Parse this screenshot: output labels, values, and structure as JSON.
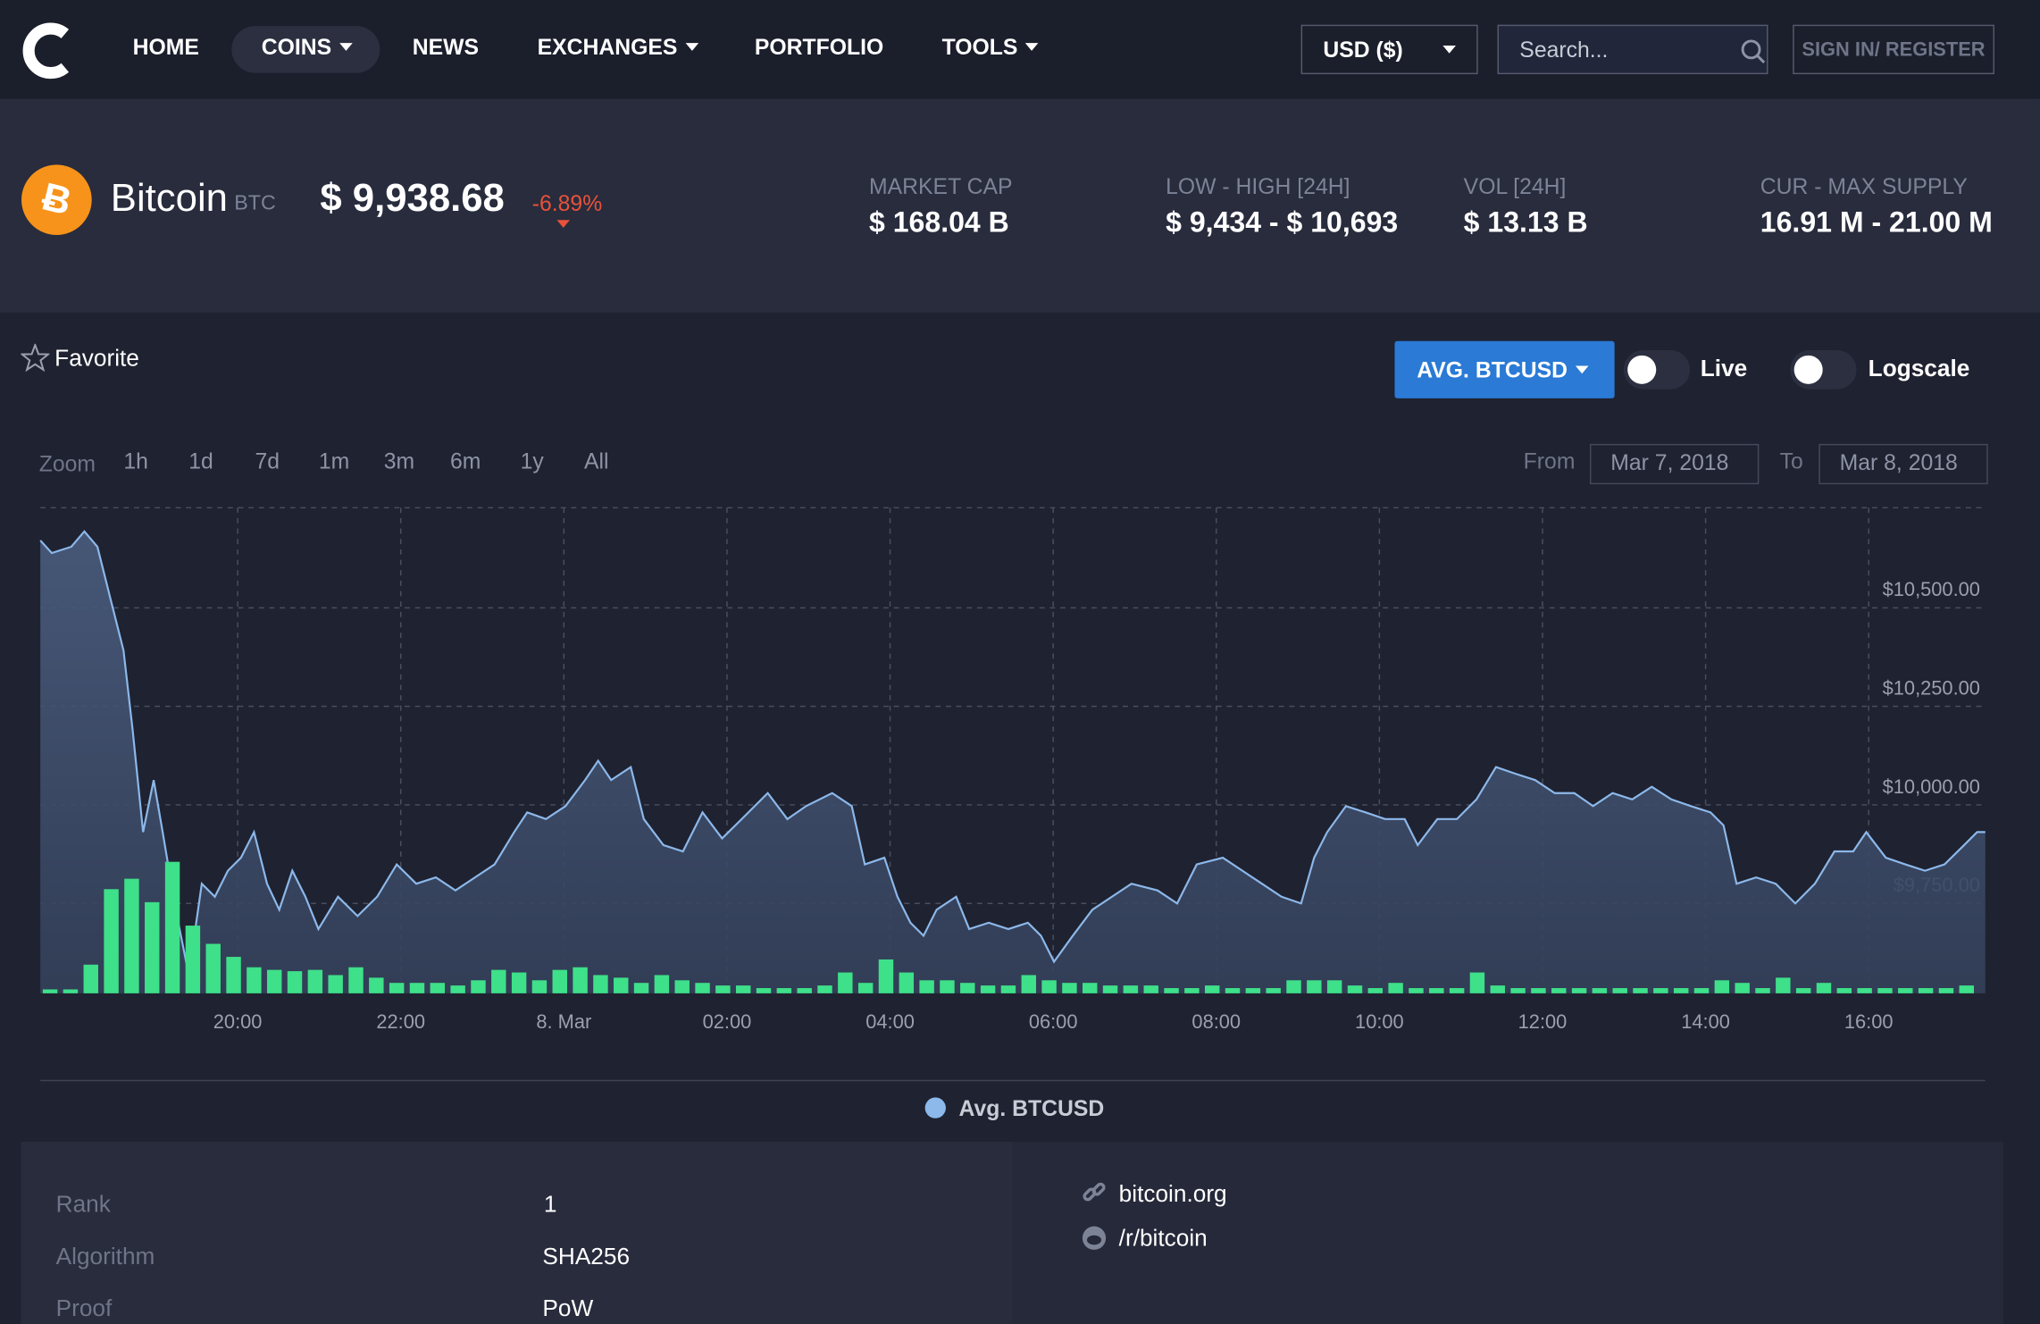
{
  "nav": {
    "items": [
      "HOME",
      "COINS",
      "NEWS",
      "EXCHANGES",
      "PORTFOLIO",
      "TOOLS"
    ],
    "currency": "USD ($)",
    "search_placeholder": "Search...",
    "sign_in": "SIGN IN/ REGISTER"
  },
  "coin": {
    "name": "Bitcoin",
    "symbol": "BTC",
    "price": "$ 9,938.68",
    "change": "-6.89%"
  },
  "stats": [
    {
      "label": "MARKET CAP",
      "value": "$ 168.04 B"
    },
    {
      "label": "LOW - HIGH [24H]",
      "value": "$ 9,434 - $ 10,693"
    },
    {
      "label": "VOL [24H]",
      "value": "$ 13.13 B"
    },
    {
      "label": "CUR - MAX SUPPLY",
      "value": "16.91 M - 21.00 M"
    }
  ],
  "controls": {
    "favorite": "Favorite",
    "pair": "AVG. BTCUSD",
    "live": "Live",
    "logscale": "Logscale"
  },
  "chart_controls": {
    "zoom": "Zoom",
    "ranges": [
      "1h",
      "1d",
      "7d",
      "1m",
      "3m",
      "6m",
      "1y",
      "All"
    ],
    "from": "From",
    "from_date": "Mar 7, 2018",
    "to": "To",
    "to_date": "Mar 8, 2018"
  },
  "chart_data": {
    "type": "area",
    "grid": true,
    "xlim": [
      17.58,
      41.43
    ],
    "xticks": [
      {
        "value": 20,
        "label": "20:00"
      },
      {
        "value": 22,
        "label": "22:00"
      },
      {
        "value": 24,
        "label": "8. Mar"
      },
      {
        "value": 26,
        "label": "02:00"
      },
      {
        "value": 28,
        "label": "04:00"
      },
      {
        "value": 30,
        "label": "06:00"
      },
      {
        "value": 32,
        "label": "08:00"
      },
      {
        "value": 34,
        "label": "10:00"
      },
      {
        "value": 36,
        "label": "12:00"
      },
      {
        "value": 38,
        "label": "14:00"
      },
      {
        "value": 40,
        "label": "16:00"
      }
    ],
    "ylim": [
      9522,
      10754
    ],
    "yticks": [
      {
        "value": 9750,
        "label": "$9,750.00"
      },
      {
        "value": 10000,
        "label": "$10,000.00"
      },
      {
        "value": 10250,
        "label": "$10,250.00"
      },
      {
        "value": 10500,
        "label": "$10,500.00"
      }
    ],
    "y2lim": [
      0,
      373
    ],
    "series": [
      {
        "name": "Avg. BTCUSD",
        "color": "#8cb8ea",
        "x": [
          17.58,
          17.72,
          17.96,
          18.12,
          18.28,
          18.44,
          18.6,
          18.71,
          18.84,
          18.97,
          19.08,
          19.24,
          19.4,
          19.56,
          19.72,
          19.88,
          20.04,
          20.2,
          20.36,
          20.51,
          20.67,
          20.83,
          20.99,
          21.23,
          21.47,
          21.71,
          21.95,
          22.19,
          22.43,
          22.67,
          22.91,
          23.15,
          23.39,
          23.55,
          23.78,
          24.02,
          24.26,
          24.42,
          24.58,
          24.82,
          24.98,
          25.22,
          25.46,
          25.7,
          25.94,
          26.18,
          26.5,
          26.74,
          26.97,
          27.29,
          27.53,
          27.69,
          27.93,
          28.09,
          28.25,
          28.41,
          28.57,
          28.81,
          28.97,
          29.21,
          29.45,
          29.69,
          29.85,
          30.01,
          30.24,
          30.48,
          30.72,
          30.96,
          31.28,
          31.52,
          31.76,
          32.08,
          32.32,
          32.56,
          32.8,
          33.04,
          33.2,
          33.36,
          33.59,
          33.83,
          34.07,
          34.31,
          34.47,
          34.71,
          34.95,
          35.19,
          35.43,
          35.67,
          35.91,
          36.15,
          36.39,
          36.62,
          36.86,
          37.1,
          37.34,
          37.58,
          37.82,
          38.06,
          38.22,
          38.38,
          38.62,
          38.86,
          39.1,
          39.34,
          39.58,
          39.81,
          39.97,
          40.21,
          40.45,
          40.69,
          40.93,
          41.17,
          41.33,
          41.43
        ],
        "values": [
          10671,
          10639,
          10655,
          10694,
          10655,
          10523,
          10392,
          10194,
          9931,
          10063,
          9931,
          9734,
          9569,
          9800,
          9767,
          9833,
          9866,
          9931,
          9800,
          9734,
          9833,
          9767,
          9685,
          9767,
          9718,
          9767,
          9849,
          9800,
          9816,
          9783,
          9816,
          9849,
          9931,
          9981,
          9964,
          9997,
          10063,
          10112,
          10063,
          10096,
          9964,
          9898,
          9882,
          9981,
          9915,
          9964,
          10030,
          9964,
          9997,
          10030,
          9997,
          9849,
          9866,
          9767,
          9701,
          9668,
          9734,
          9767,
          9685,
          9701,
          9685,
          9701,
          9668,
          9602,
          9668,
          9734,
          9767,
          9800,
          9783,
          9750,
          9849,
          9866,
          9833,
          9800,
          9767,
          9750,
          9866,
          9931,
          9997,
          9981,
          9964,
          9964,
          9898,
          9964,
          9964,
          10014,
          10096,
          10079,
          10063,
          10030,
          10030,
          9997,
          10030,
          10014,
          10046,
          10014,
          9997,
          9981,
          9948,
          9800,
          9816,
          9800,
          9750,
          9800,
          9882,
          9882,
          9931,
          9866,
          9849,
          9833,
          9849,
          9898,
          9931,
          9931
        ]
      },
      {
        "type": "bar",
        "axis": "y2",
        "color": "#3ee089",
        "x": [
          17.7,
          17.95,
          18.2,
          18.45,
          18.7,
          18.95,
          19.2,
          19.45,
          19.7,
          19.95,
          20.2,
          20.45,
          20.7,
          20.95,
          21.2,
          21.45,
          21.7,
          21.95,
          22.2,
          22.45,
          22.7,
          22.95,
          23.2,
          23.45,
          23.7,
          23.95,
          24.2,
          24.45,
          24.7,
          24.95,
          25.2,
          25.45,
          25.7,
          25.95,
          26.2,
          26.45,
          26.7,
          26.95,
          27.2,
          27.45,
          27.7,
          27.95,
          28.2,
          28.45,
          28.7,
          28.95,
          29.2,
          29.45,
          29.7,
          29.95,
          30.2,
          30.45,
          30.7,
          30.95,
          31.2,
          31.45,
          31.7,
          31.95,
          32.2,
          32.45,
          32.7,
          32.95,
          33.2,
          33.45,
          33.7,
          33.95,
          34.2,
          34.45,
          34.7,
          34.95,
          35.2,
          35.45,
          35.7,
          35.95,
          36.2,
          36.45,
          36.7,
          36.95,
          37.2,
          37.45,
          37.7,
          37.95,
          38.2,
          38.45,
          38.7,
          38.95,
          39.2,
          39.45,
          39.7,
          39.95,
          40.2,
          40.45,
          40.7,
          40.95,
          41.2
        ],
        "values": [
          3,
          3,
          22,
          80,
          88,
          70,
          101,
          52,
          38,
          28,
          20,
          18,
          17,
          18,
          14,
          20,
          12,
          8,
          8,
          8,
          6,
          10,
          18,
          16,
          10,
          18,
          20,
          14,
          12,
          8,
          14,
          10,
          8,
          6,
          6,
          4,
          4,
          4,
          6,
          16,
          8,
          26,
          16,
          10,
          10,
          8,
          6,
          6,
          14,
          10,
          8,
          8,
          6,
          6,
          6,
          4,
          4,
          6,
          4,
          4,
          4,
          10,
          10,
          10,
          6,
          4,
          8,
          4,
          4,
          4,
          16,
          6,
          4,
          4,
          4,
          4,
          4,
          4,
          4,
          4,
          4,
          4,
          10,
          8,
          4,
          12,
          4,
          8,
          4,
          4,
          4,
          4,
          4,
          4,
          6
        ]
      }
    ]
  },
  "details": {
    "rows": [
      [
        "Rank",
        "1"
      ],
      [
        "Algorithm",
        "SHA256"
      ],
      [
        "Proof",
        "PoW"
      ]
    ],
    "links": [
      "bitcoin.org",
      "/r/bitcoin"
    ]
  }
}
